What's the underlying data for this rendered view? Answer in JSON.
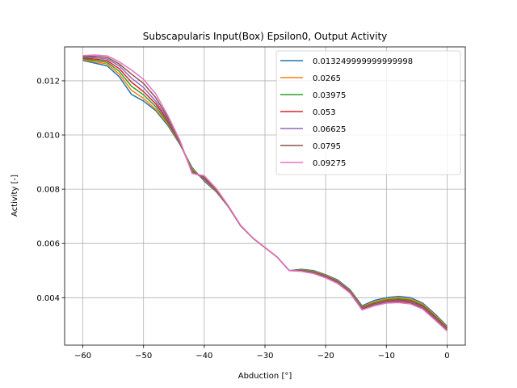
{
  "chart_data": {
    "type": "line",
    "title": "Subscapularis Input(Box) Epsilon0, Output Activity",
    "xlabel": "Abduction [°]",
    "ylabel": "Activity [-]",
    "xlim": [
      -63,
      3
    ],
    "ylim": [
      0.00225,
      0.01325
    ],
    "xticks": [
      -60,
      -50,
      -40,
      -30,
      -20,
      -10,
      0
    ],
    "xtick_labels": [
      "−60",
      "−50",
      "−40",
      "−30",
      "−20",
      "−10",
      "0"
    ],
    "yticks": [
      0.004,
      0.006,
      0.008,
      0.01,
      0.012
    ],
    "ytick_labels": [
      "0.004",
      "0.006",
      "0.008",
      "0.010",
      "0.012"
    ],
    "grid": true,
    "legend_position": "top-right",
    "x": [
      -60,
      -58,
      -56,
      -54,
      -52,
      -50,
      -48,
      -46,
      -44,
      -42,
      -40,
      -38,
      -36,
      -34,
      -32,
      -30,
      -28,
      -26,
      -24,
      -22,
      -20,
      -18,
      -16,
      -14,
      -12,
      -10,
      -8,
      -6,
      -4,
      -2,
      0
    ],
    "series": [
      {
        "name": "0.013249999999999998",
        "color": "#1f77b4",
        "values": [
          0.01275,
          0.01265,
          0.01255,
          0.01215,
          0.0115,
          0.01125,
          0.0109,
          0.01035,
          0.00965,
          0.0088,
          0.0083,
          0.0079,
          0.00735,
          0.00665,
          0.0062,
          0.00585,
          0.0055,
          0.005,
          0.00505,
          0.005,
          0.00485,
          0.00465,
          0.0043,
          0.0037,
          0.0039,
          0.004,
          0.00405,
          0.004,
          0.0038,
          0.0034,
          0.00295
        ]
      },
      {
        "name": "0.0265",
        "color": "#ff7f0e",
        "values": [
          0.01278,
          0.0127,
          0.01262,
          0.01225,
          0.01165,
          0.01135,
          0.01095,
          0.0104,
          0.00968,
          0.00875,
          0.00835,
          0.00792,
          0.00735,
          0.00665,
          0.0062,
          0.00585,
          0.0055,
          0.005,
          0.00503,
          0.00497,
          0.00483,
          0.00462,
          0.00427,
          0.00367,
          0.00385,
          0.00396,
          0.004,
          0.00395,
          0.00376,
          0.00336,
          0.00292
        ]
      },
      {
        "name": "0.03975",
        "color": "#2ca02c",
        "values": [
          0.01281,
          0.01275,
          0.01268,
          0.01235,
          0.0118,
          0.01148,
          0.01105,
          0.01045,
          0.0097,
          0.0087,
          0.00838,
          0.00794,
          0.00735,
          0.00665,
          0.0062,
          0.00585,
          0.0055,
          0.005,
          0.00502,
          0.00495,
          0.00481,
          0.0046,
          0.00425,
          0.00365,
          0.00381,
          0.00392,
          0.00396,
          0.00391,
          0.00372,
          0.00332,
          0.00289
        ]
      },
      {
        "name": "0.053",
        "color": "#d62728",
        "values": [
          0.01284,
          0.0128,
          0.01274,
          0.01245,
          0.01195,
          0.0116,
          0.01115,
          0.01052,
          0.00972,
          0.00865,
          0.0084,
          0.00796,
          0.00735,
          0.00665,
          0.0062,
          0.00585,
          0.0055,
          0.005,
          0.005,
          0.00493,
          0.00479,
          0.00458,
          0.00423,
          0.00362,
          0.00377,
          0.00388,
          0.00392,
          0.00387,
          0.00368,
          0.00328,
          0.00286
        ]
      },
      {
        "name": "0.06625",
        "color": "#9467bd",
        "values": [
          0.01287,
          0.01285,
          0.0128,
          0.01255,
          0.0121,
          0.01175,
          0.01125,
          0.01058,
          0.00975,
          0.00862,
          0.00843,
          0.00798,
          0.00736,
          0.00665,
          0.0062,
          0.00585,
          0.0055,
          0.005,
          0.00499,
          0.00491,
          0.00477,
          0.00456,
          0.00421,
          0.0036,
          0.00374,
          0.00385,
          0.00388,
          0.00383,
          0.00364,
          0.00324,
          0.00283
        ]
      },
      {
        "name": "0.0795",
        "color": "#8c564b",
        "values": [
          0.0129,
          0.0129,
          0.01286,
          0.01262,
          0.01225,
          0.0119,
          0.01138,
          0.01065,
          0.00978,
          0.0086,
          0.00846,
          0.008,
          0.00737,
          0.00666,
          0.0062,
          0.00585,
          0.0055,
          0.005,
          0.00498,
          0.0049,
          0.00475,
          0.00454,
          0.00419,
          0.00358,
          0.00372,
          0.00382,
          0.00385,
          0.0038,
          0.00361,
          0.00321,
          0.0028
        ]
      },
      {
        "name": "0.09275",
        "color": "#e377c2",
        "values": [
          0.01293,
          0.01295,
          0.01292,
          0.0127,
          0.0124,
          0.01205,
          0.01152,
          0.01072,
          0.0098,
          0.00858,
          0.0085,
          0.00802,
          0.00738,
          0.00667,
          0.00621,
          0.00585,
          0.0055,
          0.005,
          0.00497,
          0.00489,
          0.00473,
          0.00452,
          0.00417,
          0.00355,
          0.0037,
          0.0038,
          0.00382,
          0.00377,
          0.00358,
          0.00318,
          0.00277
        ]
      }
    ]
  }
}
